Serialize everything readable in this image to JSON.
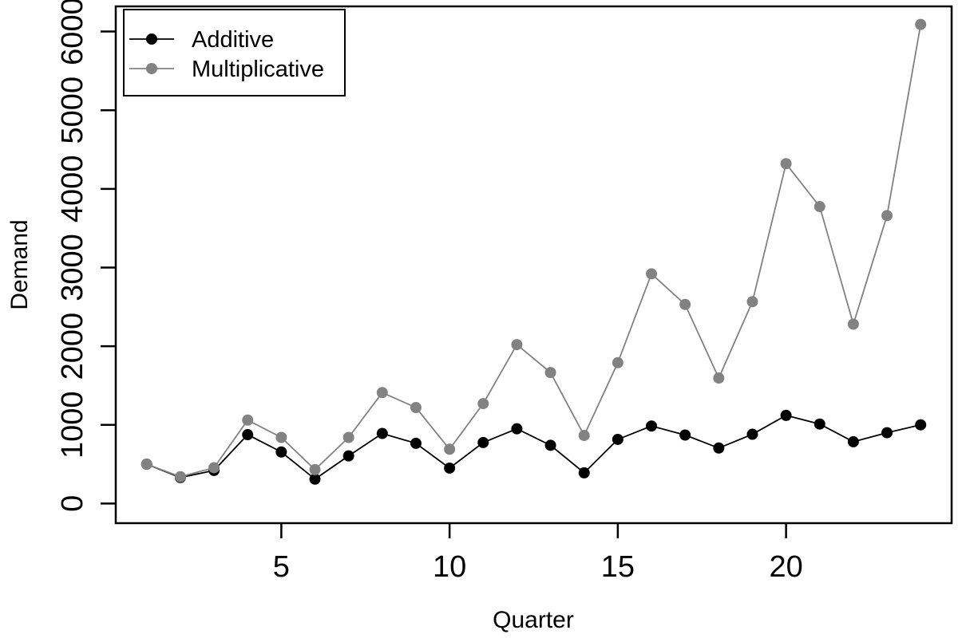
{
  "chart_data": {
    "type": "line",
    "title": "",
    "xlabel": "Quarter",
    "ylabel": "Demand",
    "x": [
      1,
      2,
      3,
      4,
      5,
      6,
      7,
      8,
      9,
      10,
      11,
      12,
      13,
      14,
      15,
      16,
      17,
      18,
      19,
      20,
      21,
      22,
      23,
      24
    ],
    "series": [
      {
        "name": "Additive",
        "color": "#000000",
        "marker": "filled-circle",
        "values": [
          500,
          330,
          420,
          875,
          655,
          310,
          605,
          890,
          765,
          450,
          775,
          950,
          740,
          390,
          815,
          985,
          870,
          705,
          880,
          1120,
          1010,
          785,
          900,
          1000
        ]
      },
      {
        "name": "Multiplicative",
        "color": "#828282",
        "marker": "filled-circle",
        "values": [
          500,
          340,
          455,
          1060,
          840,
          430,
          840,
          1410,
          1220,
          690,
          1270,
          2020,
          1665,
          865,
          1790,
          2920,
          2530,
          1595,
          2565,
          4320,
          3775,
          2280,
          3660,
          6090
        ]
      }
    ],
    "x_ticks": [
      5,
      10,
      15,
      20
    ],
    "y_ticks": [
      0,
      1000,
      2000,
      3000,
      4000,
      5000,
      6000
    ],
    "xlim": [
      0.08,
      24.92
    ],
    "ylim": [
      -250,
      6320
    ],
    "grid": false,
    "legend_position": "top-left",
    "background": "#ffffff",
    "axis_color": "#000000",
    "tick_label_color": "#000000"
  }
}
